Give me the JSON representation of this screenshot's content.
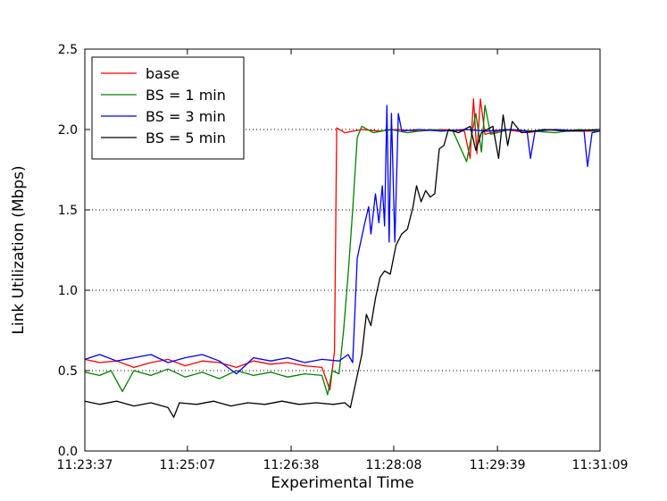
{
  "chart_data": {
    "type": "line",
    "title": "",
    "xlabel": "Experimental Time",
    "ylabel": "Link Utilization (Mbps)",
    "x_tick_labels": [
      "11:23:37",
      "11:25:07",
      "11:26:38",
      "11:28:08",
      "11:29:39",
      "11:31:09"
    ],
    "xlim": [
      "11:23:37",
      "11:31:09"
    ],
    "ylim": [
      0.0,
      2.5
    ],
    "y_ticks": [
      0.0,
      0.5,
      1.0,
      1.5,
      2.0,
      2.5
    ],
    "y_tick_labels": [
      "0.0",
      "0.5",
      "1.0",
      "1.5",
      "2.0",
      "2.5"
    ],
    "grid": "horizontal dotted at 0.5, 1.0, 1.5, 2.0",
    "legend": {
      "placement": "top-left"
    },
    "series": [
      {
        "name": "base",
        "color": "#ff0000",
        "points": [
          [
            "11:23:37",
            0.57
          ],
          [
            "11:23:50",
            0.55
          ],
          [
            "11:24:05",
            0.56
          ],
          [
            "11:24:20",
            0.52
          ],
          [
            "11:24:35",
            0.55
          ],
          [
            "11:24:50",
            0.57
          ],
          [
            "11:25:05",
            0.53
          ],
          [
            "11:25:20",
            0.56
          ],
          [
            "11:25:35",
            0.55
          ],
          [
            "11:25:50",
            0.52
          ],
          [
            "11:26:05",
            0.56
          ],
          [
            "11:26:20",
            0.54
          ],
          [
            "11:26:35",
            0.55
          ],
          [
            "11:26:50",
            0.53
          ],
          [
            "11:27:05",
            0.52
          ],
          [
            "11:27:12",
            0.38
          ],
          [
            "11:27:16",
            0.62
          ],
          [
            "11:27:18",
            2.01
          ],
          [
            "11:27:25",
            1.98
          ],
          [
            "11:27:40",
            2.0
          ],
          [
            "11:27:55",
            1.99
          ],
          [
            "11:28:10",
            2.0
          ],
          [
            "11:28:30",
            1.99
          ],
          [
            "11:28:50",
            2.0
          ],
          [
            "11:29:10",
            1.99
          ],
          [
            "11:29:15",
            1.82
          ],
          [
            "11:29:18",
            2.19
          ],
          [
            "11:29:21",
            1.85
          ],
          [
            "11:29:24",
            2.19
          ],
          [
            "11:29:28",
            1.97
          ],
          [
            "11:29:45",
            2.0
          ],
          [
            "11:30:05",
            1.98
          ],
          [
            "11:30:25",
            2.0
          ],
          [
            "11:30:45",
            1.99
          ],
          [
            "11:31:09",
            1.99
          ]
        ]
      },
      {
        "name": "BS = 1 min",
        "color": "#008000",
        "points": [
          [
            "11:23:37",
            0.49
          ],
          [
            "11:23:50",
            0.47
          ],
          [
            "11:24:00",
            0.5
          ],
          [
            "11:24:10",
            0.37
          ],
          [
            "11:24:20",
            0.5
          ],
          [
            "11:24:35",
            0.47
          ],
          [
            "11:24:50",
            0.51
          ],
          [
            "11:25:05",
            0.46
          ],
          [
            "11:25:20",
            0.49
          ],
          [
            "11:25:35",
            0.45
          ],
          [
            "11:25:50",
            0.5
          ],
          [
            "11:26:05",
            0.47
          ],
          [
            "11:26:20",
            0.49
          ],
          [
            "11:26:35",
            0.46
          ],
          [
            "11:26:50",
            0.48
          ],
          [
            "11:27:05",
            0.47
          ],
          [
            "11:27:10",
            0.35
          ],
          [
            "11:27:14",
            0.5
          ],
          [
            "11:27:20",
            0.48
          ],
          [
            "11:27:24",
            0.75
          ],
          [
            "11:27:28",
            1.1
          ],
          [
            "11:27:32",
            1.5
          ],
          [
            "11:27:36",
            1.95
          ],
          [
            "11:27:40",
            2.02
          ],
          [
            "11:27:50",
            1.98
          ],
          [
            "11:28:05",
            2.0
          ],
          [
            "11:28:20",
            1.98
          ],
          [
            "11:28:40",
            2.0
          ],
          [
            "11:29:00",
            1.99
          ],
          [
            "11:29:12",
            1.8
          ],
          [
            "11:29:20",
            2.1
          ],
          [
            "11:29:25",
            1.86
          ],
          [
            "11:29:28",
            2.15
          ],
          [
            "11:29:33",
            1.97
          ],
          [
            "11:29:50",
            2.0
          ],
          [
            "11:30:10",
            1.99
          ],
          [
            "11:30:30",
            1.98
          ],
          [
            "11:30:50",
            2.0
          ],
          [
            "11:31:09",
            1.99
          ]
        ]
      },
      {
        "name": "BS = 3 min",
        "color": "#0000ff",
        "points": [
          [
            "11:23:37",
            0.57
          ],
          [
            "11:23:50",
            0.6
          ],
          [
            "11:24:05",
            0.56
          ],
          [
            "11:24:20",
            0.58
          ],
          [
            "11:24:35",
            0.6
          ],
          [
            "11:24:50",
            0.55
          ],
          [
            "11:25:05",
            0.58
          ],
          [
            "11:25:20",
            0.6
          ],
          [
            "11:25:35",
            0.56
          ],
          [
            "11:25:50",
            0.48
          ],
          [
            "11:26:05",
            0.58
          ],
          [
            "11:26:20",
            0.56
          ],
          [
            "11:26:35",
            0.58
          ],
          [
            "11:26:50",
            0.55
          ],
          [
            "11:27:05",
            0.57
          ],
          [
            "11:27:20",
            0.56
          ],
          [
            "11:27:28",
            0.6
          ],
          [
            "11:27:32",
            0.55
          ],
          [
            "11:27:36",
            1.2
          ],
          [
            "11:27:42",
            1.4
          ],
          [
            "11:27:46",
            1.52
          ],
          [
            "11:27:48",
            1.35
          ],
          [
            "11:27:52",
            1.6
          ],
          [
            "11:27:55",
            1.42
          ],
          [
            "11:27:58",
            1.65
          ],
          [
            "11:28:00",
            1.4
          ],
          [
            "11:28:02",
            2.15
          ],
          [
            "11:28:04",
            1.3
          ],
          [
            "11:28:06",
            2.1
          ],
          [
            "11:28:09",
            1.3
          ],
          [
            "11:28:12",
            2.1
          ],
          [
            "11:28:15",
            1.99
          ],
          [
            "11:28:30",
            2.0
          ],
          [
            "11:28:50",
            1.99
          ],
          [
            "11:29:10",
            2.0
          ],
          [
            "11:29:30",
            1.99
          ],
          [
            "11:29:50",
            2.0
          ],
          [
            "11:30:05",
            1.99
          ],
          [
            "11:30:08",
            1.82
          ],
          [
            "11:30:12",
            1.99
          ],
          [
            "11:30:30",
            2.0
          ],
          [
            "11:30:55",
            1.99
          ],
          [
            "11:30:58",
            1.77
          ],
          [
            "11:31:02",
            1.98
          ],
          [
            "11:31:09",
            1.99
          ]
        ]
      },
      {
        "name": "BS = 5 min",
        "color": "#000000",
        "points": [
          [
            "11:23:37",
            0.31
          ],
          [
            "11:23:50",
            0.29
          ],
          [
            "11:24:05",
            0.31
          ],
          [
            "11:24:20",
            0.28
          ],
          [
            "11:24:35",
            0.3
          ],
          [
            "11:24:50",
            0.27
          ],
          [
            "11:24:55",
            0.21
          ],
          [
            "11:25:00",
            0.3
          ],
          [
            "11:25:15",
            0.29
          ],
          [
            "11:25:30",
            0.31
          ],
          [
            "11:25:45",
            0.28
          ],
          [
            "11:26:00",
            0.3
          ],
          [
            "11:26:15",
            0.29
          ],
          [
            "11:26:30",
            0.31
          ],
          [
            "11:26:45",
            0.29
          ],
          [
            "11:27:00",
            0.3
          ],
          [
            "11:27:15",
            0.29
          ],
          [
            "11:27:25",
            0.3
          ],
          [
            "11:27:30",
            0.27
          ],
          [
            "11:27:40",
            0.6
          ],
          [
            "11:27:44",
            0.85
          ],
          [
            "11:27:48",
            0.78
          ],
          [
            "11:27:52",
            0.95
          ],
          [
            "11:27:56",
            1.08
          ],
          [
            "11:28:00",
            1.12
          ],
          [
            "11:28:05",
            1.1
          ],
          [
            "11:28:10",
            1.28
          ],
          [
            "11:28:15",
            1.35
          ],
          [
            "11:28:20",
            1.38
          ],
          [
            "11:28:25",
            1.52
          ],
          [
            "11:28:28",
            1.65
          ],
          [
            "11:28:32",
            1.55
          ],
          [
            "11:28:36",
            1.62
          ],
          [
            "11:28:40",
            1.58
          ],
          [
            "11:28:44",
            1.6
          ],
          [
            "11:28:48",
            1.88
          ],
          [
            "11:28:52",
            1.9
          ],
          [
            "11:28:56",
            2.0
          ],
          [
            "11:29:05",
            1.98
          ],
          [
            "11:29:15",
            2.02
          ],
          [
            "11:29:20",
            1.87
          ],
          [
            "11:29:25",
            1.98
          ],
          [
            "11:29:35",
            2.02
          ],
          [
            "11:29:40",
            1.82
          ],
          [
            "11:29:44",
            2.09
          ],
          [
            "11:29:48",
            1.9
          ],
          [
            "11:29:52",
            2.05
          ],
          [
            "11:30:00",
            1.98
          ],
          [
            "11:30:20",
            2.0
          ],
          [
            "11:30:40",
            1.99
          ],
          [
            "11:31:09",
            2.0
          ]
        ]
      }
    ]
  }
}
